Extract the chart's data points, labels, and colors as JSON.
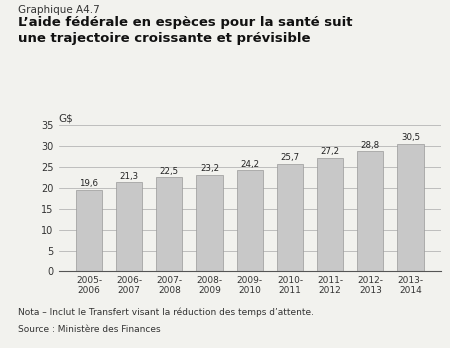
{
  "suptitle": "Graphique A4.7",
  "title": "L’aide fédérale en espèces pour la santé suit\nune trajectoire croissante et prévisible",
  "categories": [
    "2005-\n2006",
    "2006-\n2007",
    "2007-\n2008",
    "2008-\n2009",
    "2009-\n2010",
    "2010-\n2011",
    "2011-\n2012",
    "2012-\n2013",
    "2013-\n2014"
  ],
  "values": [
    19.6,
    21.3,
    22.5,
    23.2,
    24.2,
    25.7,
    27.2,
    28.8,
    30.5
  ],
  "bar_color": "#c8c8c8",
  "bar_edge_color": "#999999",
  "ylim": [
    0,
    35
  ],
  "yticks": [
    0,
    5,
    10,
    15,
    20,
    25,
    30,
    35
  ],
  "nota": "Nota – Inclut le Transfert visant la réduction des temps d’attente.",
  "source": "Source : Ministère des Finances",
  "background_color": "#f2f2ee",
  "value_labels": [
    "19,6",
    "21,3",
    "22,5",
    "23,2",
    "24,2",
    "25,7",
    "27,2",
    "28,8",
    "30,5"
  ]
}
